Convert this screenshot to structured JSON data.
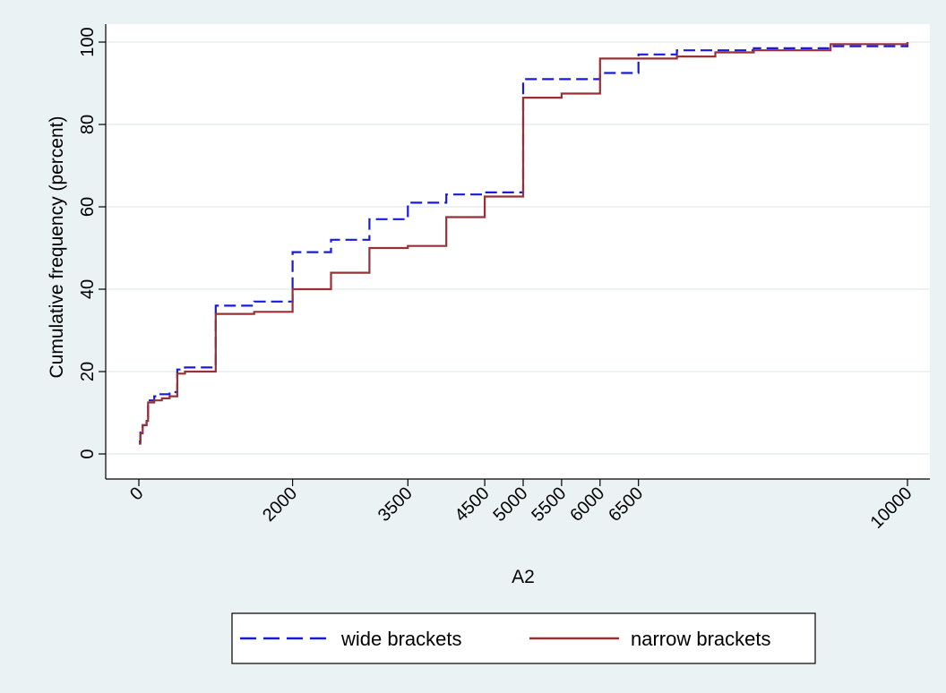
{
  "chart_data": {
    "type": "line",
    "step": true,
    "title": "",
    "xlabel": "A2",
    "ylabel": "Cumulative frequency (percent)",
    "xlim": [
      0,
      10000
    ],
    "ylim": [
      0,
      100
    ],
    "x_ticks": [
      0,
      2000,
      3500,
      4500,
      5000,
      5500,
      6000,
      6500,
      10000
    ],
    "x_tick_labels": [
      "0",
      "2000",
      "3500",
      "4500",
      "5000",
      "5500",
      "6000",
      "6500",
      "10000"
    ],
    "y_ticks": [
      0,
      20,
      40,
      60,
      80,
      100
    ],
    "y_tick_labels": [
      "0",
      "20",
      "40",
      "60",
      "80",
      "100"
    ],
    "grid": "horizontal",
    "legend": {
      "position": "bottom",
      "entries": [
        "wide brackets",
        "narrow brackets"
      ]
    },
    "series": [
      {
        "name": "wide brackets",
        "color": "#1a1adc",
        "dash": "dashed",
        "points": [
          [
            0,
            3
          ],
          [
            20,
            6
          ],
          [
            50,
            7
          ],
          [
            100,
            8
          ],
          [
            120,
            13
          ],
          [
            200,
            14
          ],
          [
            250,
            14.5
          ],
          [
            400,
            15
          ],
          [
            500,
            20.5
          ],
          [
            600,
            21
          ],
          [
            1000,
            21
          ],
          [
            1000,
            36
          ],
          [
            1500,
            37
          ],
          [
            2000,
            37
          ],
          [
            2000,
            49
          ],
          [
            2500,
            52
          ],
          [
            3000,
            57
          ],
          [
            3500,
            61
          ],
          [
            4000,
            63
          ],
          [
            4500,
            63.5
          ],
          [
            5000,
            63.5
          ],
          [
            5000,
            91
          ],
          [
            6000,
            91
          ],
          [
            6000,
            92.5
          ],
          [
            6500,
            92.5
          ],
          [
            6500,
            97
          ],
          [
            7000,
            98
          ],
          [
            8000,
            98.5
          ],
          [
            9000,
            99
          ],
          [
            10000,
            99.5
          ],
          [
            10000,
            100
          ]
        ]
      },
      {
        "name": "narrow brackets",
        "color": "#963236",
        "dash": "solid",
        "points": [
          [
            0,
            2.5
          ],
          [
            20,
            5
          ],
          [
            50,
            7
          ],
          [
            100,
            8
          ],
          [
            120,
            12.5
          ],
          [
            200,
            13
          ],
          [
            300,
            13.5
          ],
          [
            400,
            14
          ],
          [
            500,
            19.5
          ],
          [
            600,
            20
          ],
          [
            800,
            20
          ],
          [
            1000,
            20
          ],
          [
            1000,
            34
          ],
          [
            1500,
            34.5
          ],
          [
            2000,
            34.5
          ],
          [
            2000,
            40
          ],
          [
            2500,
            44
          ],
          [
            3000,
            50
          ],
          [
            3500,
            50.5
          ],
          [
            4000,
            57.5
          ],
          [
            4500,
            62.5
          ],
          [
            5000,
            62.5
          ],
          [
            5000,
            86.5
          ],
          [
            5500,
            87.5
          ],
          [
            6000,
            87.5
          ],
          [
            6000,
            96
          ],
          [
            7000,
            96.5
          ],
          [
            7500,
            97.5
          ],
          [
            8000,
            98
          ],
          [
            9000,
            98.5
          ],
          [
            9000,
            99.5
          ],
          [
            10000,
            99.5
          ],
          [
            10000,
            100
          ]
        ]
      }
    ]
  }
}
